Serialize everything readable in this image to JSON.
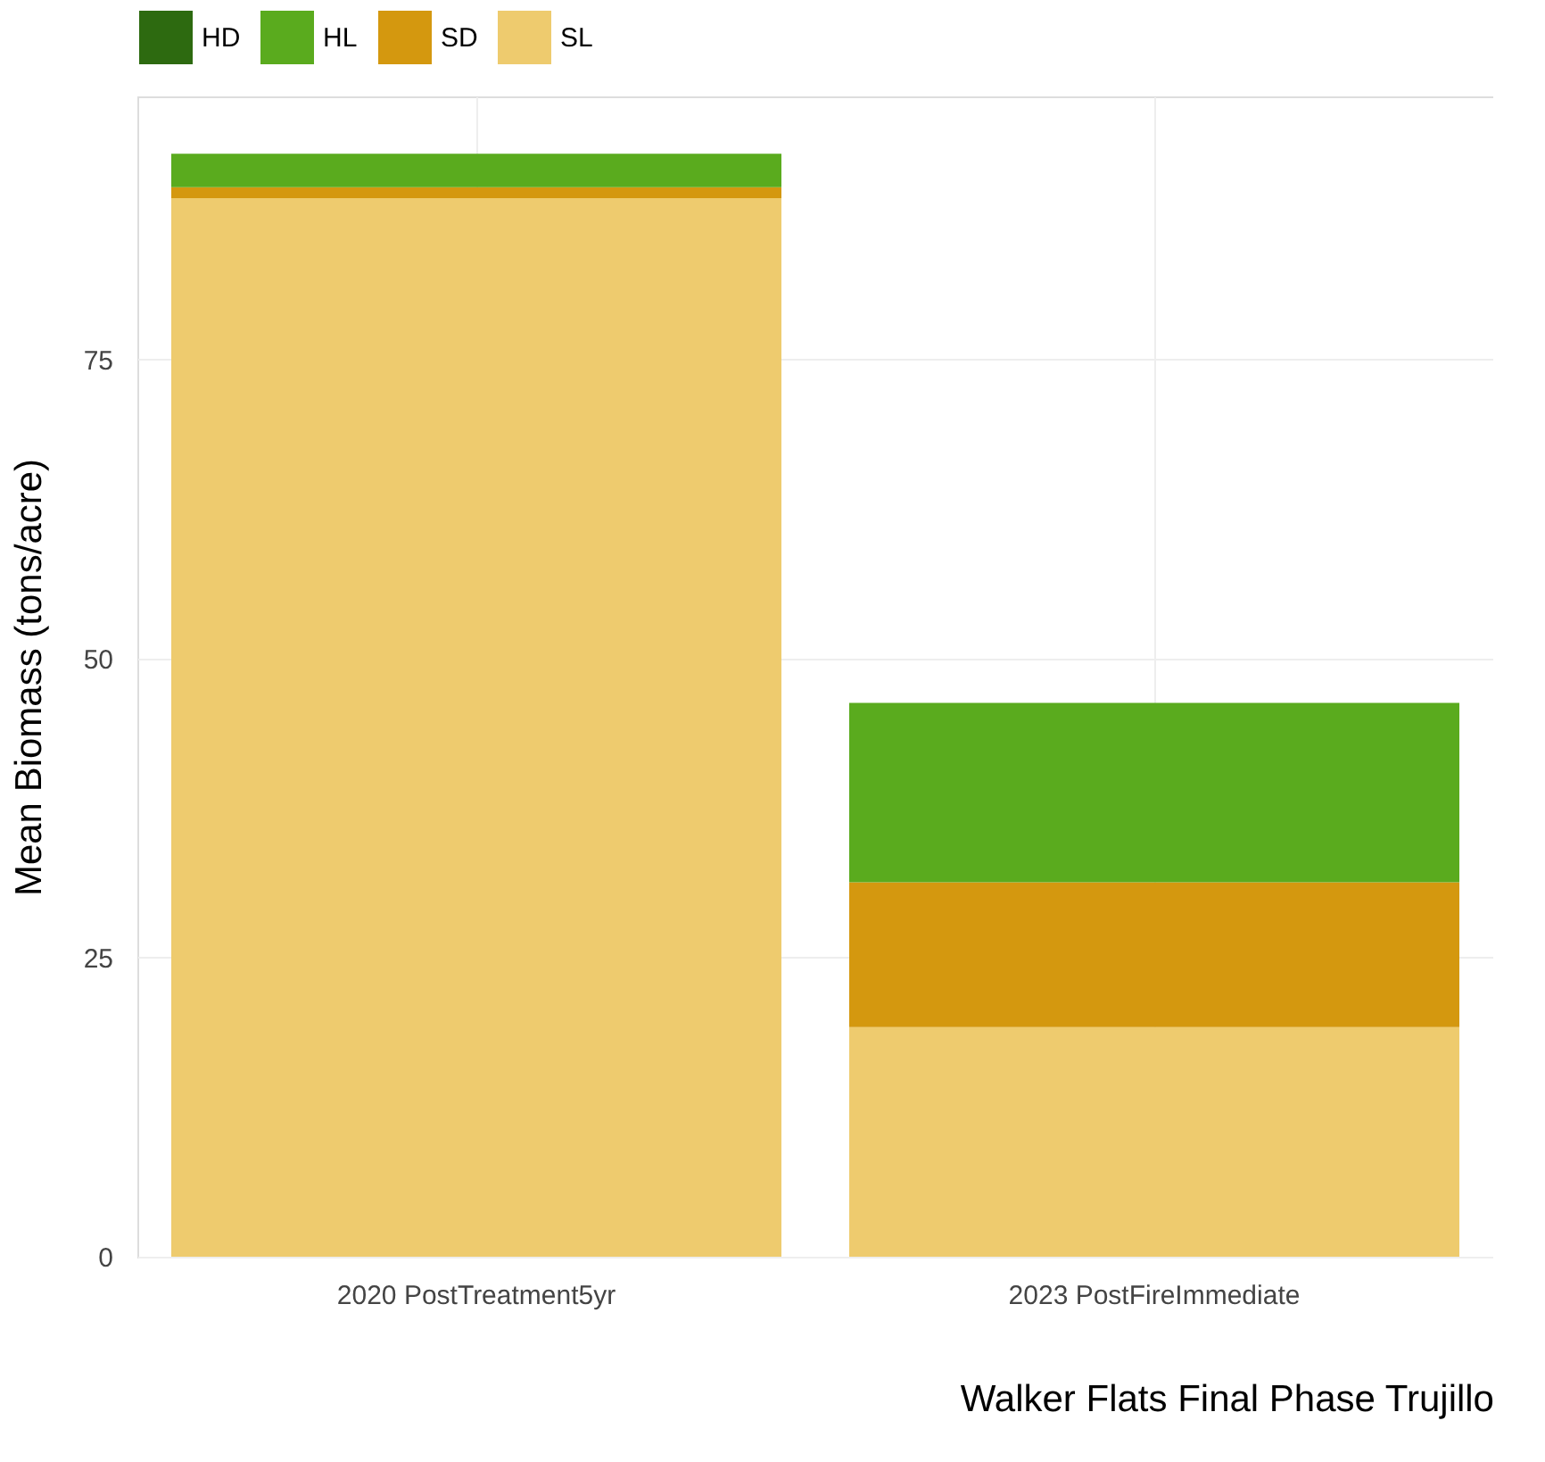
{
  "chart_data": {
    "type": "bar",
    "stacked": true,
    "xlabel": "Walker Flats Final Phase Trujillo",
    "ylabel": "Mean Biomass (tons/acre)",
    "categories": [
      "2020 PostTreatment5yr",
      "2023 PostFireImmediate"
    ],
    "series": [
      {
        "name": "SL",
        "color": "#eecb6e",
        "values": [
          88.5,
          19.2
        ]
      },
      {
        "name": "SD",
        "color": "#d4980f",
        "values": [
          0.9,
          12.1
        ]
      },
      {
        "name": "HL",
        "color": "#5aab1e",
        "values": [
          2.8,
          15.0
        ]
      },
      {
        "name": "HD",
        "color": "#2d6a10",
        "values": [
          0,
          0
        ]
      }
    ],
    "ylim": [
      0,
      97
    ],
    "yticks": [
      0,
      25,
      50,
      75
    ],
    "grid": true,
    "legend": "top"
  }
}
